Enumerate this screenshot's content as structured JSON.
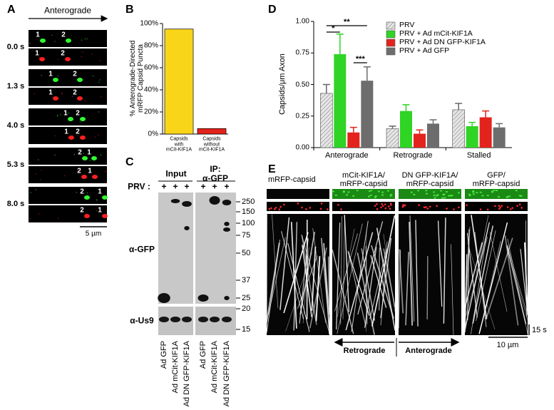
{
  "panel_labels": [
    "A",
    "B",
    "C",
    "D",
    "E"
  ],
  "panel_a": {
    "direction": "Anterograde",
    "times": [
      "0.0 s",
      "1.3 s",
      "4.0 s",
      "5.3 s",
      "8.0 s"
    ],
    "puncta": [
      "1",
      "2"
    ],
    "scale_bar": "5 µm"
  },
  "chart_data": [
    {
      "type": "bar",
      "y_label": "% Anterograde-Directed\nmRFP Capsid Puncta",
      "categories": [
        "Capsids\nwith\nmCit-KIF1A",
        "Capsids\nwithout\nmCit-KIF1A"
      ],
      "values": [
        95,
        5
      ],
      "colors": [
        "#f9d51a",
        "#e3231c"
      ],
      "ylim": [
        0,
        100
      ],
      "yticks": [
        {
          "value": 0,
          "label": "0%"
        },
        {
          "value": 20,
          "label": "20%"
        },
        {
          "value": 40,
          "label": "40%"
        },
        {
          "value": 60,
          "label": "60%"
        },
        {
          "value": 80,
          "label": "80%"
        },
        {
          "value": 100,
          "label": "100%"
        }
      ]
    },
    {
      "type": "grouped_bar",
      "y_label": "Capsids/μm Axon",
      "categories": [
        "Anterograde",
        "Retrograde",
        "Stalled"
      ],
      "series": [
        {
          "name": "PRV",
          "color": "#d0d0d0",
          "hatch": true,
          "values": [
            0.43,
            0.15,
            0.3
          ],
          "errors": [
            0.07,
            0.02,
            0.05
          ]
        },
        {
          "name": "PRV + Ad mCit-KIF1A",
          "color": "#2fd424",
          "hatch": false,
          "values": [
            0.74,
            0.29,
            0.17
          ],
          "errors": [
            0.16,
            0.05,
            0.03
          ]
        },
        {
          "name": "PRV + Ad DN GFP-KIF1A",
          "color": "#e3231c",
          "hatch": false,
          "values": [
            0.12,
            0.11,
            0.24
          ],
          "errors": [
            0.04,
            0.03,
            0.05
          ]
        },
        {
          "name": "PRV + Ad GFP",
          "color": "#6d6d6d",
          "hatch": false,
          "values": [
            0.53,
            0.19,
            0.16
          ],
          "errors": [
            0.11,
            0.03,
            0.03
          ]
        }
      ],
      "ylim": [
        0,
        1
      ],
      "yticks": [
        {
          "value": 0,
          "label": "0.00"
        },
        0.25,
        {
          "value": 0.5,
          "label": "0.50"
        },
        0.75,
        {
          "value": 1,
          "label": "1.00"
        }
      ],
      "legend": "upper right",
      "annotations": [
        "**",
        "*",
        "***"
      ]
    }
  ],
  "panel_c": {
    "input": "Input",
    "ip": "IP:\nα-GFP",
    "prv": "PRV :",
    "plus": "+",
    "markers": [
      250,
      150,
      100,
      75,
      50,
      37,
      25,
      20,
      15
    ],
    "antibodies": [
      "α-GFP",
      "α-Us9"
    ],
    "lanes": [
      "Ad GFP",
      "Ad mCit-KIF1A",
      "Ad DN GFP-KIF1A"
    ]
  },
  "panel_e": {
    "conditions": [
      "mRFP-capsid",
      "mCit-KIF1A/\nmRFP-capsid",
      "DN GFP-KIF1A/\nmRFP-capsid",
      "GFP/\nmRFP-capsid"
    ],
    "directions": [
      "Retrograde",
      "Anterograde"
    ],
    "time_scale": "15 s",
    "length_scale": "10 µm"
  }
}
